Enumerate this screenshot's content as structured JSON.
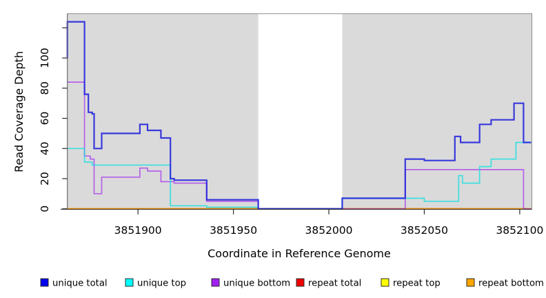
{
  "chart_data": {
    "type": "line",
    "step": true,
    "title": "",
    "xlabel": "Coordinate in Reference Genome",
    "ylabel": "Read Coverage Depth",
    "xlim": [
      3851863,
      3852106
    ],
    "ylim": [
      0,
      129
    ],
    "grid": false,
    "legend_position": "bottom",
    "panel_bg": "#dadada",
    "panel_border": "#8a8a8a",
    "axis_color": "#2b2b2b",
    "masked_region": {
      "x_start": 3851963,
      "x_end": 3852007,
      "color": "#ffffff"
    },
    "x_ticks": [
      3851900,
      3851950,
      3852000,
      3852050,
      3852100
    ],
    "x_tick_labels": [
      "3851900",
      "3851950",
      "3852000",
      "3852050",
      "3852100"
    ],
    "y_ticks": [
      0,
      20,
      40,
      60,
      80,
      100,
      120
    ],
    "y_tick_labels": [
      "0",
      "20",
      "40",
      "60",
      "80",
      "100",
      ""
    ],
    "draw_order": [
      4,
      3,
      5,
      2,
      1,
      0
    ],
    "series": [
      {
        "name": "unique total",
        "swatch_color": "#0000ee",
        "line_color": "#2121dd",
        "opacity": 0.88,
        "width": 2.2,
        "points": [
          [
            3851863,
            100
          ],
          [
            3851863,
            124
          ],
          [
            3851872,
            76
          ],
          [
            3851874,
            64
          ],
          [
            3851876,
            63
          ],
          [
            3851877,
            40
          ],
          [
            3851881,
            50
          ],
          [
            3851901,
            56
          ],
          [
            3851905,
            52
          ],
          [
            3851912,
            47
          ],
          [
            3851917,
            20
          ],
          [
            3851919,
            19
          ],
          [
            3851936,
            6
          ],
          [
            3851963,
            0
          ],
          [
            3852007,
            7
          ],
          [
            3852040,
            33
          ],
          [
            3852050,
            32
          ],
          [
            3852066,
            48
          ],
          [
            3852069,
            44
          ],
          [
            3852079,
            56
          ],
          [
            3852085,
            59
          ],
          [
            3852097,
            70
          ],
          [
            3852102,
            44
          ],
          [
            3852106,
            44
          ]
        ]
      },
      {
        "name": "unique top",
        "swatch_color": "#00ffff",
        "line_color": "#00dfdf",
        "opacity": 0.72,
        "width": 1.7,
        "points": [
          [
            3851863,
            40
          ],
          [
            3851872,
            31
          ],
          [
            3851876,
            29
          ],
          [
            3851917,
            2
          ],
          [
            3851936,
            1
          ],
          [
            3851963,
            0
          ],
          [
            3852007,
            7
          ],
          [
            3852050,
            5
          ],
          [
            3852068,
            22
          ],
          [
            3852070,
            17
          ],
          [
            3852079,
            28
          ],
          [
            3852085,
            33
          ],
          [
            3852098,
            44
          ],
          [
            3852106,
            44
          ]
        ]
      },
      {
        "name": "unique bottom",
        "swatch_color": "#a020f0",
        "line_color": "#a020f0",
        "opacity": 0.65,
        "width": 1.7,
        "points": [
          [
            3851863,
            84
          ],
          [
            3851872,
            35
          ],
          [
            3851875,
            33
          ],
          [
            3851877,
            10
          ],
          [
            3851881,
            21
          ],
          [
            3851901,
            27
          ],
          [
            3851905,
            25
          ],
          [
            3851912,
            18
          ],
          [
            3851919,
            17
          ],
          [
            3851936,
            5
          ],
          [
            3851963,
            0
          ],
          [
            3852040,
            26
          ],
          [
            3852102,
            0
          ],
          [
            3852106,
            0
          ]
        ]
      },
      {
        "name": "repeat total",
        "swatch_color": "#ee0000",
        "line_color": "#dd2222",
        "opacity": 1,
        "width": 1.7,
        "points": [
          [
            3851863,
            0
          ],
          [
            3852106,
            0
          ]
        ]
      },
      {
        "name": "repeat top",
        "swatch_color": "#ffff00",
        "line_color": "#eeee00",
        "opacity": 1,
        "width": 1.7,
        "points": [
          [
            3851863,
            0
          ],
          [
            3852106,
            0
          ]
        ]
      },
      {
        "name": "repeat bottom",
        "swatch_color": "#ffa500",
        "line_color": "#ff9d0a",
        "opacity": 1,
        "width": 2.2,
        "points": [
          [
            3851863,
            0
          ],
          [
            3852106,
            0
          ]
        ]
      }
    ]
  }
}
